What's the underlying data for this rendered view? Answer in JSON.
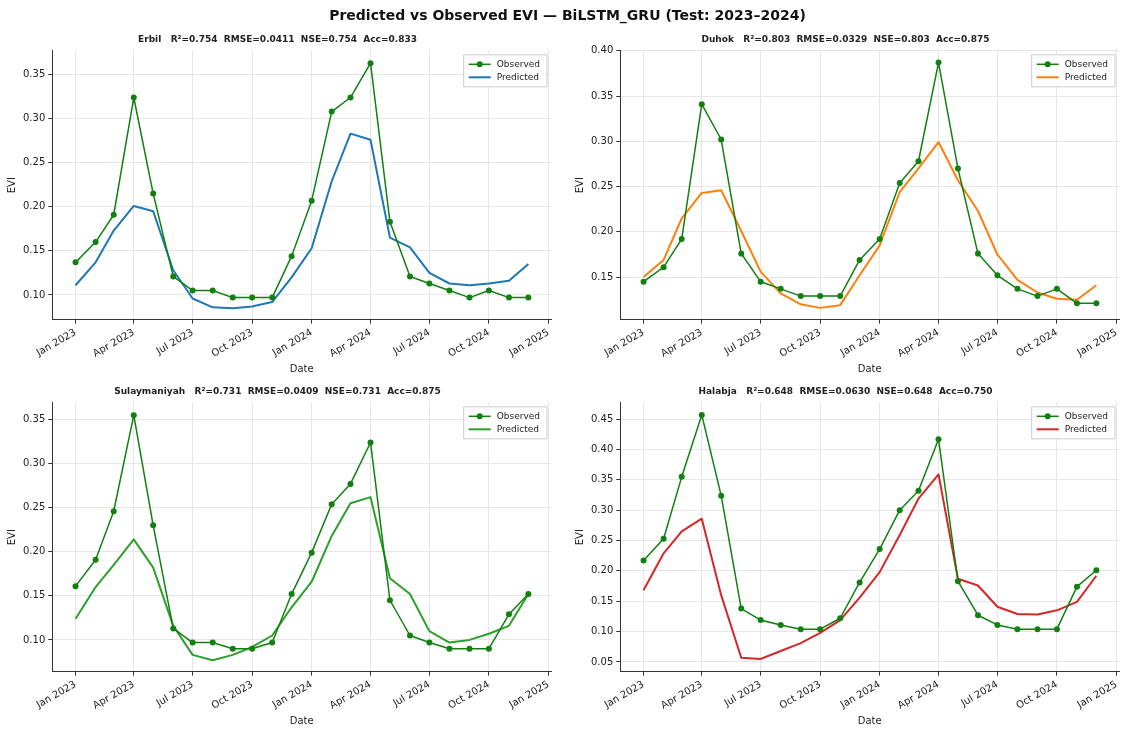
{
  "chart_data": [
    {
      "type": "other",
      "title": "Predicted vs Observed EVI — BiLSTM_GRU (Test: 2023–2024)"
    },
    {
      "type": "line",
      "title": "Erbil   R²=0.754  RMSE=0.0411  NSE=0.754  Acc=0.833",
      "xlabel": "Date",
      "ylabel": "EVI",
      "x": [
        "2023-01",
        "2023-02",
        "2023-03",
        "2023-04",
        "2023-05",
        "2023-06",
        "2023-07",
        "2023-08",
        "2023-09",
        "2023-10",
        "2023-11",
        "2023-12",
        "2024-01",
        "2024-02",
        "2024-03",
        "2024-04",
        "2024-05",
        "2024-06",
        "2024-07",
        "2024-08",
        "2024-09",
        "2024-10",
        "2024-11",
        "2024-12"
      ],
      "xlim": [
        "2022-11-26",
        "2025-01-05"
      ],
      "xticks": [
        {
          "value": "2023-01",
          "label": "Jan 2023"
        },
        {
          "value": "2023-04",
          "label": "Apr 2023"
        },
        {
          "value": "2023-07",
          "label": "Jul 2023"
        },
        {
          "value": "2023-10",
          "label": "Oct 2023"
        },
        {
          "value": "2024-01",
          "label": "Jan 2024"
        },
        {
          "value": "2024-04",
          "label": "Apr 2024"
        },
        {
          "value": "2024-07",
          "label": "Jul 2024"
        },
        {
          "value": "2024-10",
          "label": "Oct 2024"
        },
        {
          "value": "2025-01",
          "label": "Jan 2025"
        }
      ],
      "ylim": [
        0.072,
        0.377
      ],
      "yticks": [
        {
          "value": 0.1,
          "label": "0.10"
        },
        {
          "value": 0.15,
          "label": "0.15"
        },
        {
          "value": 0.2,
          "label": "0.20"
        },
        {
          "value": 0.25,
          "label": "0.25"
        },
        {
          "value": 0.3,
          "label": "0.30"
        },
        {
          "value": 0.35,
          "label": "0.35"
        }
      ],
      "grid": true,
      "legend": "top right",
      "series": [
        {
          "name": "Observed",
          "color": "#118011",
          "marker": "circle",
          "values": [
            0.137,
            0.16,
            0.191,
            0.324,
            0.215,
            0.121,
            0.105,
            0.105,
            0.097,
            0.097,
            0.097,
            0.144,
            0.207,
            0.308,
            0.324,
            0.363,
            0.183,
            0.121,
            0.113,
            0.105,
            0.097,
            0.105,
            0.097,
            0.097
          ]
        },
        {
          "name": "Predicted",
          "color": "#1f77b4",
          "marker": "none",
          "values": [
            0.111,
            0.137,
            0.173,
            0.201,
            0.195,
            0.128,
            0.096,
            0.086,
            0.085,
            0.087,
            0.092,
            0.12,
            0.153,
            0.229,
            0.283,
            0.276,
            0.165,
            0.154,
            0.125,
            0.113,
            0.111,
            0.113,
            0.116,
            0.135
          ]
        }
      ]
    },
    {
      "type": "line",
      "title": "Duhok   R²=0.803  RMSE=0.0329  NSE=0.803  Acc=0.875",
      "xlabel": "Date",
      "ylabel": "EVI",
      "x": [
        "2023-01",
        "2023-02",
        "2023-03",
        "2023-04",
        "2023-05",
        "2023-06",
        "2023-07",
        "2023-08",
        "2023-09",
        "2023-10",
        "2023-11",
        "2023-12",
        "2024-01",
        "2024-02",
        "2024-03",
        "2024-04",
        "2024-05",
        "2024-06",
        "2024-07",
        "2024-08",
        "2024-09",
        "2024-10",
        "2024-11",
        "2024-12"
      ],
      "xlim": [
        "2022-11-26",
        "2025-01-05"
      ],
      "xticks": [
        {
          "value": "2023-01",
          "label": "Jan 2023"
        },
        {
          "value": "2023-04",
          "label": "Apr 2023"
        },
        {
          "value": "2023-07",
          "label": "Jul 2023"
        },
        {
          "value": "2023-10",
          "label": "Oct 2023"
        },
        {
          "value": "2024-01",
          "label": "Jan 2024"
        },
        {
          "value": "2024-04",
          "label": "Apr 2024"
        },
        {
          "value": "2024-07",
          "label": "Jul 2024"
        },
        {
          "value": "2024-10",
          "label": "Oct 2024"
        },
        {
          "value": "2025-01",
          "label": "Jan 2025"
        }
      ],
      "ylim": [
        0.103,
        0.4
      ],
      "yticks": [
        {
          "value": 0.15,
          "label": "0.15"
        },
        {
          "value": 0.2,
          "label": "0.20"
        },
        {
          "value": 0.25,
          "label": "0.25"
        },
        {
          "value": 0.3,
          "label": "0.30"
        },
        {
          "value": 0.35,
          "label": "0.35"
        },
        {
          "value": 0.4,
          "label": "0.40"
        }
      ],
      "grid": true,
      "legend": "top right",
      "series": [
        {
          "name": "Observed",
          "color": "#118011",
          "marker": "circle",
          "values": [
            0.145,
            0.161,
            0.192,
            0.341,
            0.302,
            0.176,
            0.145,
            0.137,
            0.129,
            0.129,
            0.129,
            0.169,
            0.192,
            0.254,
            0.278,
            0.387,
            0.27,
            0.176,
            0.152,
            0.137,
            0.129,
            0.137,
            0.121,
            0.121
          ]
        },
        {
          "name": "Predicted",
          "color": "#ff7f0e",
          "marker": "none",
          "values": [
            0.15,
            0.169,
            0.215,
            0.243,
            0.246,
            0.201,
            0.156,
            0.132,
            0.12,
            0.116,
            0.119,
            0.152,
            0.185,
            0.244,
            0.27,
            0.299,
            0.257,
            0.223,
            0.175,
            0.147,
            0.133,
            0.126,
            0.125,
            0.141
          ]
        }
      ]
    },
    {
      "type": "line",
      "title": "Sulaymaniyah   R²=0.731  RMSE=0.0409  NSE=0.731  Acc=0.875",
      "xlabel": "Date",
      "ylabel": "EVI",
      "x": [
        "2023-01",
        "2023-02",
        "2023-03",
        "2023-04",
        "2023-05",
        "2023-06",
        "2023-07",
        "2023-08",
        "2023-09",
        "2023-10",
        "2023-11",
        "2023-12",
        "2024-01",
        "2024-02",
        "2024-03",
        "2024-04",
        "2024-05",
        "2024-06",
        "2024-07",
        "2024-08",
        "2024-09",
        "2024-10",
        "2024-11",
        "2024-12"
      ],
      "xlim": [
        "2022-11-26",
        "2025-01-05"
      ],
      "xticks": [
        {
          "value": "2023-01",
          "label": "Jan 2023"
        },
        {
          "value": "2023-04",
          "label": "Apr 2023"
        },
        {
          "value": "2023-07",
          "label": "Jul 2023"
        },
        {
          "value": "2023-10",
          "label": "Oct 2023"
        },
        {
          "value": "2024-01",
          "label": "Jan 2024"
        },
        {
          "value": "2024-04",
          "label": "Apr 2024"
        },
        {
          "value": "2024-07",
          "label": "Jul 2024"
        },
        {
          "value": "2024-10",
          "label": "Oct 2024"
        },
        {
          "value": "2025-01",
          "label": "Jan 2025"
        }
      ],
      "ylim": [
        0.064,
        0.369
      ],
      "yticks": [
        {
          "value": 0.1,
          "label": "0.10"
        },
        {
          "value": 0.15,
          "label": "0.15"
        },
        {
          "value": 0.2,
          "label": "0.20"
        },
        {
          "value": 0.25,
          "label": "0.25"
        },
        {
          "value": 0.3,
          "label": "0.30"
        },
        {
          "value": 0.35,
          "label": "0.35"
        }
      ],
      "grid": true,
      "legend": "top right",
      "series": [
        {
          "name": "Observed",
          "color": "#118011",
          "marker": "circle",
          "values": [
            0.161,
            0.191,
            0.246,
            0.355,
            0.23,
            0.113,
            0.097,
            0.097,
            0.09,
            0.09,
            0.097,
            0.152,
            0.199,
            0.254,
            0.277,
            0.324,
            0.145,
            0.105,
            0.097,
            0.09,
            0.09,
            0.09,
            0.129,
            0.152
          ]
        },
        {
          "name": "Predicted",
          "color": "#2ca02c",
          "marker": "none",
          "values": [
            0.124,
            0.16,
            0.185,
            0.214,
            0.182,
            0.116,
            0.083,
            0.077,
            0.083,
            0.092,
            0.105,
            0.137,
            0.166,
            0.218,
            0.255,
            0.262,
            0.17,
            0.152,
            0.11,
            0.097,
            0.1,
            0.107,
            0.116,
            0.152
          ]
        }
      ]
    },
    {
      "type": "line",
      "title": "Halabja   R²=0.648  RMSE=0.0630  NSE=0.648  Acc=0.750",
      "xlabel": "Date",
      "ylabel": "EVI",
      "x": [
        "2023-01",
        "2023-02",
        "2023-03",
        "2023-04",
        "2023-05",
        "2023-06",
        "2023-07",
        "2023-08",
        "2023-09",
        "2023-10",
        "2023-11",
        "2023-12",
        "2024-01",
        "2024-02",
        "2024-03",
        "2024-04",
        "2024-05",
        "2024-06",
        "2024-07",
        "2024-08",
        "2024-09",
        "2024-10",
        "2024-11",
        "2024-12"
      ],
      "xlim": [
        "2022-11-26",
        "2025-01-05"
      ],
      "xticks": [
        {
          "value": "2023-01",
          "label": "Jan 2023"
        },
        {
          "value": "2023-04",
          "label": "Apr 2023"
        },
        {
          "value": "2023-07",
          "label": "Jul 2023"
        },
        {
          "value": "2023-10",
          "label": "Oct 2023"
        },
        {
          "value": "2024-01",
          "label": "Jan 2024"
        },
        {
          "value": "2024-04",
          "label": "Apr 2024"
        },
        {
          "value": "2024-07",
          "label": "Jul 2024"
        },
        {
          "value": "2024-10",
          "label": "Oct 2024"
        },
        {
          "value": "2025-01",
          "label": "Jan 2025"
        }
      ],
      "ylim": [
        0.034,
        0.477
      ],
      "yticks": [
        {
          "value": 0.05,
          "label": "0.05"
        },
        {
          "value": 0.1,
          "label": "0.10"
        },
        {
          "value": 0.15,
          "label": "0.15"
        },
        {
          "value": 0.2,
          "label": "0.20"
        },
        {
          "value": 0.25,
          "label": "0.25"
        },
        {
          "value": 0.3,
          "label": "0.30"
        },
        {
          "value": 0.35,
          "label": "0.35"
        },
        {
          "value": 0.4,
          "label": "0.40"
        },
        {
          "value": 0.45,
          "label": "0.45"
        }
      ],
      "grid": true,
      "legend": "top right",
      "series": [
        {
          "name": "Observed",
          "color": "#118011",
          "marker": "circle",
          "values": [
            0.217,
            0.253,
            0.355,
            0.457,
            0.324,
            0.138,
            0.119,
            0.111,
            0.104,
            0.104,
            0.122,
            0.181,
            0.236,
            0.3,
            0.332,
            0.417,
            0.183,
            0.127,
            0.111,
            0.104,
            0.104,
            0.104,
            0.174,
            0.201
          ]
        },
        {
          "name": "Predicted",
          "color": "#d62728",
          "marker": "none",
          "values": [
            0.168,
            0.229,
            0.265,
            0.286,
            0.16,
            0.057,
            0.055,
            0.068,
            0.081,
            0.098,
            0.119,
            0.156,
            0.198,
            0.259,
            0.319,
            0.359,
            0.187,
            0.176,
            0.141,
            0.129,
            0.128,
            0.135,
            0.149,
            0.192
          ]
        }
      ]
    }
  ]
}
